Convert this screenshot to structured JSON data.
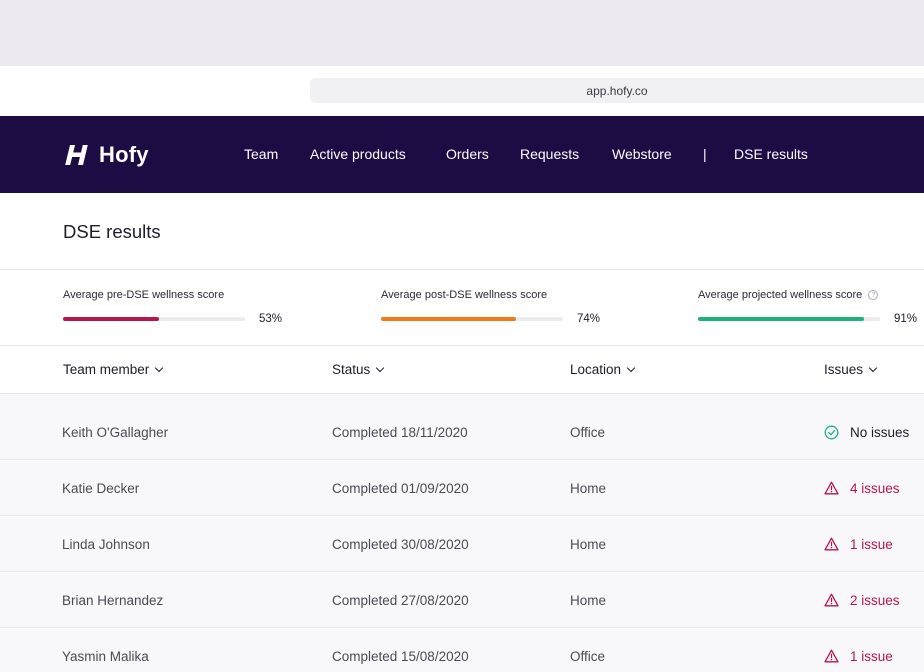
{
  "browser": {
    "url": "app.hofy.co"
  },
  "nav": {
    "logo": "Hofy",
    "items": [
      "Team",
      "Active products",
      "Orders",
      "Requests",
      "Webstore"
    ],
    "separator": "|",
    "current": "DSE results"
  },
  "page": {
    "title": "DSE results"
  },
  "scores": [
    {
      "label": "Average pre-DSE wellness score",
      "value": 53,
      "display": "53%",
      "color": "#b5164b"
    },
    {
      "label": "Average post-DSE wellness score",
      "value": 74,
      "display": "74%",
      "color": "#f07b14"
    },
    {
      "label": "Average projected wellness score",
      "value": 91,
      "display": "91%",
      "color": "#1db27c"
    }
  ],
  "columns": [
    "Team member",
    "Status",
    "Location",
    "Issues"
  ],
  "rows": [
    {
      "member": "Keith O'Gallagher",
      "status": "Completed 18/11/2020",
      "location": "Office",
      "issues": "No issues",
      "issue_icon": "check-circle-icon"
    },
    {
      "member": "Katie Decker",
      "status": "Completed 01/09/2020",
      "location": "Home",
      "issues": "4 issues",
      "issue_icon": "warning-triangle-icon"
    },
    {
      "member": "Linda Johnson",
      "status": "Completed 30/08/2020",
      "location": "Home",
      "issues": "1 issue",
      "issue_icon": "warning-triangle-icon"
    },
    {
      "member": "Brian Hernandez",
      "status": "Completed 27/08/2020",
      "location": "Home",
      "issues": "2 issues",
      "issue_icon": "warning-triangle-icon"
    },
    {
      "member": "Yasmin Malika",
      "status": "Completed 15/08/2020",
      "location": "Office",
      "issues": "1 issue",
      "issue_icon": "warning-triangle-icon"
    }
  ],
  "colors": {
    "nav_bg": "#1d0b44",
    "issue_red": "#b5164b",
    "ok_green": "#1db27c"
  }
}
